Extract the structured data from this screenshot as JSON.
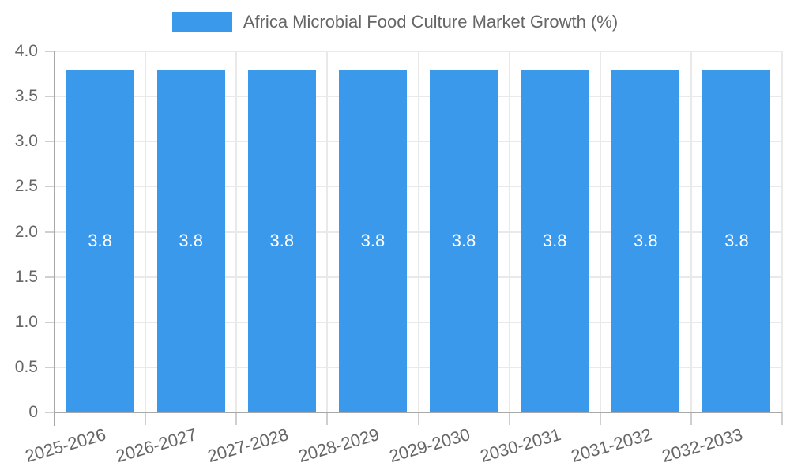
{
  "chart_data": {
    "type": "bar",
    "title": "Africa Microbial Food Culture Market Growth (%)",
    "categories": [
      "2025-2026",
      "2026-2027",
      "2027-2028",
      "2028-2029",
      "2029-2030",
      "2030-2031",
      "2031-2032",
      "2032-2033"
    ],
    "values": [
      3.8,
      3.8,
      3.8,
      3.8,
      3.8,
      3.8,
      3.8,
      3.8
    ],
    "bar_labels": [
      "3.8",
      "3.8",
      "3.8",
      "3.8",
      "3.8",
      "3.8",
      "3.8",
      "3.8"
    ],
    "xlabel": "",
    "ylabel": "",
    "ylim": [
      0,
      4.0
    ],
    "yticks": [
      {
        "v": 4.0,
        "label": "4.0"
      },
      {
        "v": 3.5,
        "label": "3.5"
      },
      {
        "v": 3.0,
        "label": "3.0"
      },
      {
        "v": 2.5,
        "label": "2.5"
      },
      {
        "v": 2.0,
        "label": "2.0"
      },
      {
        "v": 1.5,
        "label": "1.5"
      },
      {
        "v": 1.0,
        "label": "1.0"
      },
      {
        "v": 0.5,
        "label": "0.5"
      },
      {
        "v": 0.0,
        "label": "0"
      }
    ],
    "grid": true,
    "legend_position": "top",
    "colors": {
      "bar": "#3b99ec",
      "grid": "#e9e9e9",
      "axis": "#a8a8a8",
      "tick": "#cfcfcf",
      "text": "#666666",
      "bar_label": "#ffffff",
      "background": "#ffffff"
    }
  }
}
